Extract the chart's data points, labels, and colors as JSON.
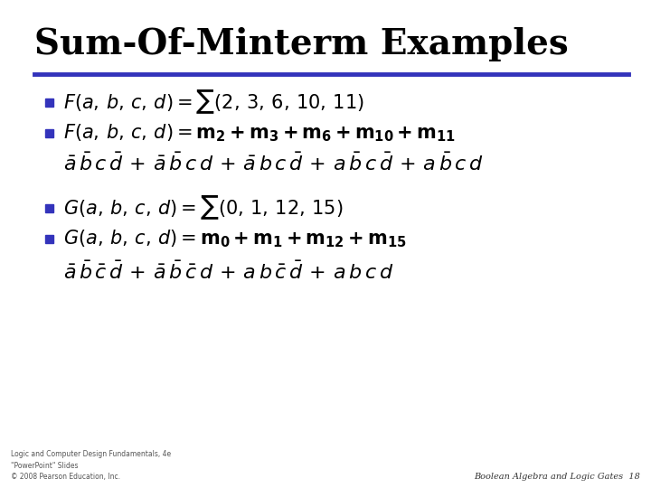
{
  "title": "Sum-Of-Minterm Examples",
  "title_color": "#000000",
  "title_fontsize": 28,
  "line_color": "#3333BB",
  "background_color": "#FFFFFF",
  "bullet_color": "#3333BB",
  "footer_left": "Logic and Computer Design Fundamentals, 4e\n\"PowerPoint\" Slides\n© 2008 Pearson Education, Inc.",
  "footer_right": "Boolean Algebra and Logic Gates  18",
  "content_fontsize": 15,
  "expr_fontsize": 16
}
